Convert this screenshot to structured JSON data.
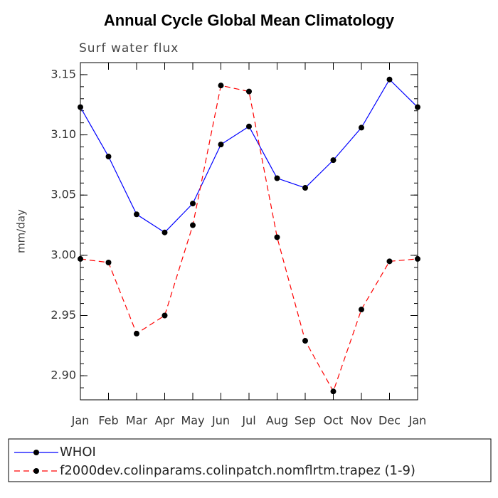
{
  "chart_data": {
    "type": "line",
    "title": "Annual Cycle Global Mean Climatology",
    "subtitle": "Surf water flux",
    "y_label": "mm/day",
    "categories": [
      "Jan",
      "Feb",
      "Mar",
      "Apr",
      "May",
      "Jun",
      "Jul",
      "Aug",
      "Sep",
      "Oct",
      "Nov",
      "Dec",
      "Jan"
    ],
    "series": [
      {
        "name": "WHOI",
        "color": "#0000ff",
        "dash": "solid",
        "values": [
          3.123,
          3.082,
          3.034,
          3.019,
          3.043,
          3.092,
          3.107,
          3.064,
          3.056,
          3.079,
          3.106,
          3.146,
          3.123
        ]
      },
      {
        "name": "f2000dev.colinparams.colinpatch.nomflrtm.trapez (1-9)",
        "color": "#ff0000",
        "dash": "dashed",
        "values": [
          2.997,
          2.994,
          2.935,
          2.95,
          3.025,
          3.141,
          3.136,
          3.015,
          2.929,
          2.887,
          2.955,
          2.995,
          2.997
        ]
      }
    ],
    "ylim": [
      2.88,
      3.16
    ],
    "yticks": [
      {
        "value": 2.9,
        "label": "2.90"
      },
      2.95,
      {
        "value": 3.0,
        "label": "3.00"
      },
      3.05,
      {
        "value": 3.1,
        "label": "3.10"
      },
      3.15
    ],
    "grid": false
  }
}
